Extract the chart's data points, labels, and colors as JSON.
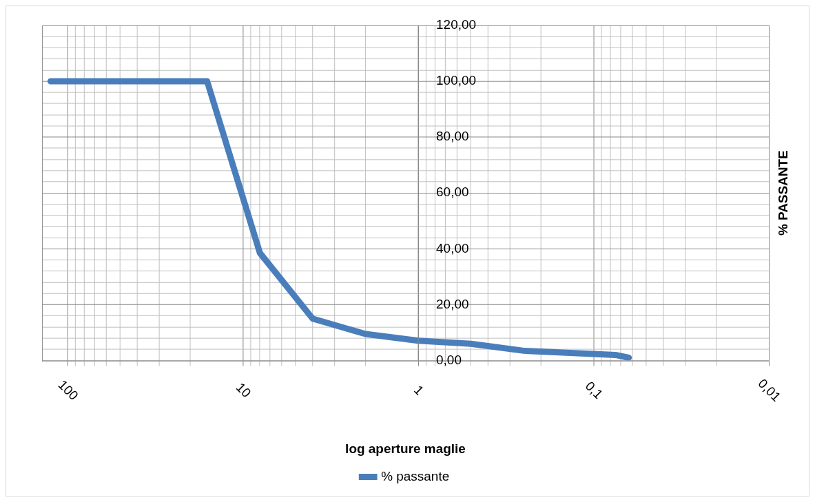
{
  "chart_data": {
    "type": "line",
    "xlabel": "log aperture maglie",
    "ylabel": "% PASSANTE",
    "log": "x",
    "grid": true,
    "legend": "bottom",
    "marker": "none",
    "line_style": "solid",
    "x": [
      125,
      16,
      8,
      4,
      2,
      1,
      0.5,
      0.25,
      0.075,
      0.063
    ],
    "series": [
      {
        "name": "% passante",
        "color": "#4a7ebb",
        "values": [
          100,
          100,
          38.5,
          15,
          9.5,
          7.1,
          6,
          3.5,
          2,
          1
        ]
      }
    ],
    "xlim": [
      140,
      0.01
    ],
    "xticks": [
      {
        "value": 100,
        "label": "100"
      },
      {
        "value": 90,
        "label": null
      },
      {
        "value": 80,
        "label": null
      },
      {
        "value": 70,
        "label": null
      },
      {
        "value": 60,
        "label": null
      },
      {
        "value": 50,
        "label": null
      },
      {
        "value": 40,
        "label": null
      },
      {
        "value": 30,
        "label": null
      },
      {
        "value": 20,
        "label": null
      },
      {
        "value": 10,
        "label": "10"
      },
      {
        "value": 9,
        "label": null
      },
      {
        "value": 8,
        "label": null
      },
      {
        "value": 7,
        "label": null
      },
      {
        "value": 6,
        "label": null
      },
      {
        "value": 5,
        "label": null
      },
      {
        "value": 4,
        "label": null
      },
      {
        "value": 3,
        "label": null
      },
      {
        "value": 2,
        "label": null
      },
      {
        "value": 1,
        "label": "1"
      },
      {
        "value": 0.9,
        "label": null
      },
      {
        "value": 0.8,
        "label": null
      },
      {
        "value": 0.7,
        "label": null
      },
      {
        "value": 0.6,
        "label": null
      },
      {
        "value": 0.5,
        "label": null
      },
      {
        "value": 0.4,
        "label": null
      },
      {
        "value": 0.3,
        "label": null
      },
      {
        "value": 0.2,
        "label": null
      },
      {
        "value": 0.1,
        "label": "0,1"
      },
      {
        "value": 0.09,
        "label": null
      },
      {
        "value": 0.08,
        "label": null
      },
      {
        "value": 0.07,
        "label": null
      },
      {
        "value": 0.06,
        "label": null
      },
      {
        "value": 0.05,
        "label": null
      },
      {
        "value": 0.04,
        "label": null
      },
      {
        "value": 0.03,
        "label": null
      },
      {
        "value": 0.02,
        "label": null
      },
      {
        "value": 0.01,
        "label": "0,01"
      }
    ],
    "ylim": [
      0,
      120
    ],
    "yticks": [
      {
        "value": 0,
        "label": "0,00"
      },
      {
        "value": 4,
        "label": null
      },
      {
        "value": 8,
        "label": null
      },
      {
        "value": 12,
        "label": null
      },
      {
        "value": 16,
        "label": null
      },
      {
        "value": 20,
        "label": "20,00"
      },
      {
        "value": 24,
        "label": null
      },
      {
        "value": 28,
        "label": null
      },
      {
        "value": 32,
        "label": null
      },
      {
        "value": 36,
        "label": null
      },
      {
        "value": 40,
        "label": "40,00"
      },
      {
        "value": 44,
        "label": null
      },
      {
        "value": 48,
        "label": null
      },
      {
        "value": 52,
        "label": null
      },
      {
        "value": 56,
        "label": null
      },
      {
        "value": 60,
        "label": "60,00"
      },
      {
        "value": 64,
        "label": null
      },
      {
        "value": 68,
        "label": null
      },
      {
        "value": 72,
        "label": null
      },
      {
        "value": 76,
        "label": null
      },
      {
        "value": 80,
        "label": "80,00"
      },
      {
        "value": 84,
        "label": null
      },
      {
        "value": 88,
        "label": null
      },
      {
        "value": 92,
        "label": null
      },
      {
        "value": 96,
        "label": null
      },
      {
        "value": 100,
        "label": "100,00"
      },
      {
        "value": 104,
        "label": null
      },
      {
        "value": 108,
        "label": null
      },
      {
        "value": 112,
        "label": null
      },
      {
        "value": 116,
        "label": null
      },
      {
        "value": 120,
        "label": "120,00"
      }
    ]
  }
}
